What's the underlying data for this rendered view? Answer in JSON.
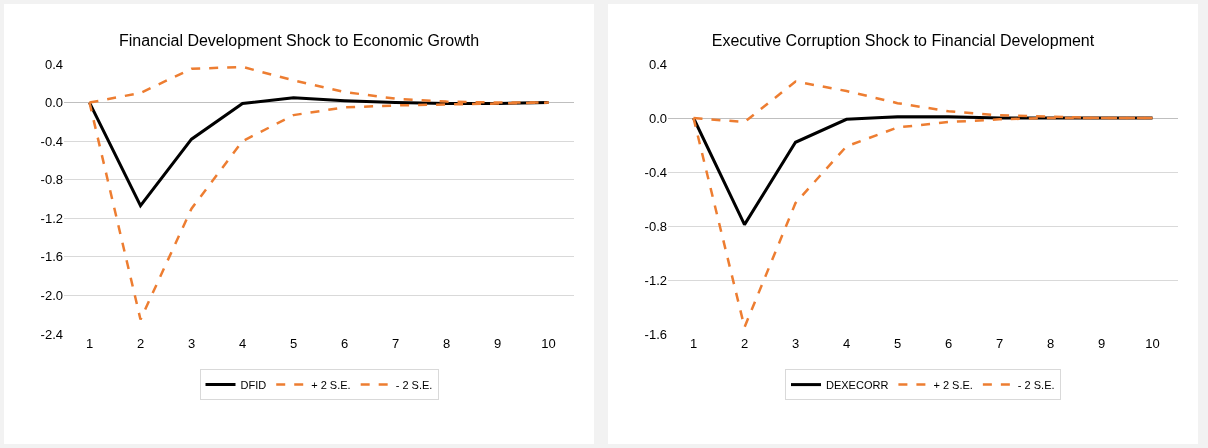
{
  "chart_data": [
    {
      "type": "line",
      "title": "Financial Development Shock to Economic Growth",
      "categories": [
        "1",
        "2",
        "3",
        "4",
        "5",
        "6",
        "7",
        "8",
        "9",
        "10"
      ],
      "ylim": [
        -2.4,
        0.4
      ],
      "yticks": [
        {
          "value": -2.4,
          "label": "-2.4"
        },
        {
          "value": -2.0,
          "label": "-2.0"
        },
        {
          "value": -1.6,
          "label": "-1.6"
        },
        {
          "value": -1.2,
          "label": "-1.2"
        },
        {
          "value": -0.8,
          "label": "-0.8"
        },
        {
          "value": -0.4,
          "label": "-0.4"
        },
        {
          "value": 0,
          "label": "0.0"
        },
        {
          "value": 0.4,
          "label": "0.4"
        }
      ],
      "grid": "y",
      "legend": "bottom",
      "series": [
        {
          "name": "DFID",
          "color": "#000000",
          "line_style": "solid",
          "values": [
            0,
            -1.07,
            -0.38,
            -0.01,
            0.05,
            0.02,
            0.0,
            -0.01,
            -0.01,
            0.0
          ]
        },
        {
          "name": "+ 2 S.E.",
          "color": "#ed7d31",
          "line_style": "dashed",
          "values": [
            0,
            0.1,
            0.35,
            0.37,
            0.23,
            0.11,
            0.04,
            0.01,
            0.0,
            0.0
          ]
        },
        {
          "name": "- 2 S.E.",
          "color": "#ed7d31",
          "line_style": "dashed",
          "values": [
            0,
            -2.25,
            -1.1,
            -0.4,
            -0.13,
            -0.05,
            -0.03,
            -0.02,
            -0.01,
            0.0
          ]
        }
      ]
    },
    {
      "type": "line",
      "title": "Executive Corruption Shock to Financial Development",
      "categories": [
        "1",
        "2",
        "3",
        "4",
        "5",
        "6",
        "7",
        "8",
        "9",
        "10"
      ],
      "ylim": [
        -1.6,
        0.4
      ],
      "yticks": [
        {
          "value": -1.6,
          "label": "-1.6"
        },
        {
          "value": -1.2,
          "label": "-1.2"
        },
        {
          "value": -0.8,
          "label": "-0.8"
        },
        {
          "value": -0.4,
          "label": "-0.4"
        },
        {
          "value": 0,
          "label": "0.0"
        },
        {
          "value": 0.4,
          "label": "0.4"
        }
      ],
      "grid": "y",
      "legend": "bottom",
      "series": [
        {
          "name": "DEXECORR",
          "color": "#000000",
          "line_style": "solid",
          "values": [
            0,
            -0.79,
            -0.18,
            -0.01,
            0.01,
            0.01,
            0.0,
            0.0,
            0.0,
            0.0
          ]
        },
        {
          "name": "+ 2 S.E.",
          "color": "#ed7d31",
          "line_style": "dashed",
          "values": [
            0,
            -0.03,
            0.27,
            0.2,
            0.11,
            0.05,
            0.02,
            0.01,
            0.0,
            0.0
          ]
        },
        {
          "name": "- 2 S.E.",
          "color": "#ed7d31",
          "line_style": "dashed",
          "values": [
            0,
            -1.55,
            -0.63,
            -0.21,
            -0.07,
            -0.03,
            -0.01,
            0.0,
            0.0,
            0.0
          ]
        }
      ]
    }
  ]
}
